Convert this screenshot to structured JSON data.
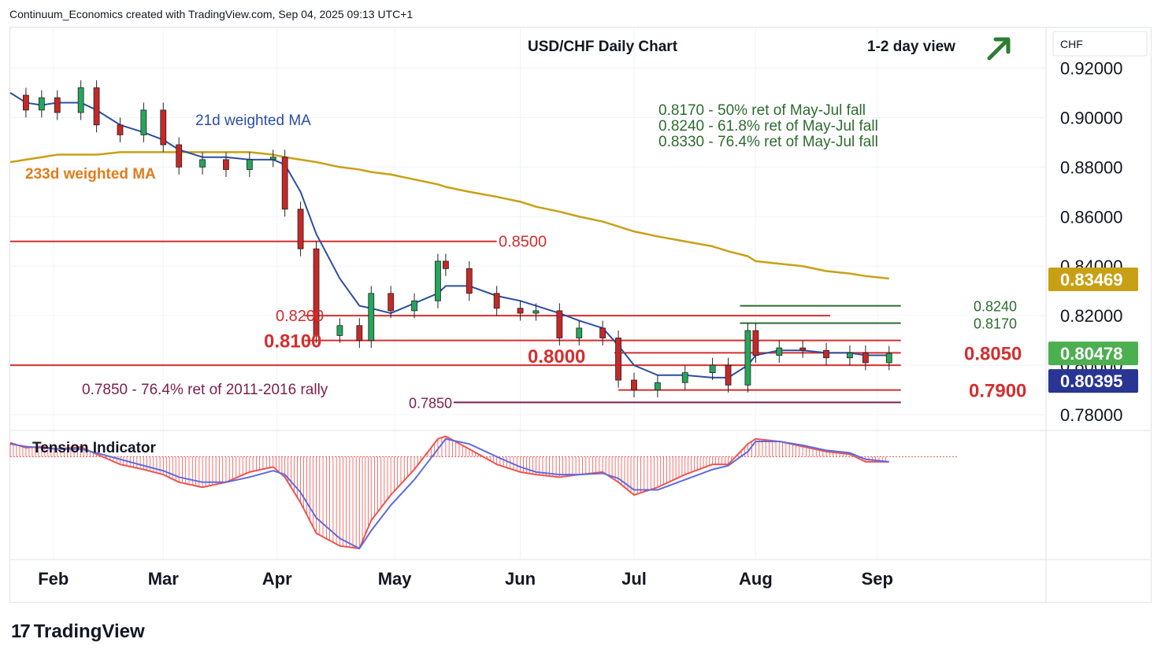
{
  "header": {
    "credit": "Continuum_Economics created with TradingView.com, Sep 04, 2025 09:13 UTC+1"
  },
  "chart_data": {
    "type": "candlestick",
    "title": "USD/CHF Daily Chart",
    "subtitle": "1-2 day view",
    "outlook_icon": "arrow-up-right-icon",
    "currency": "CHF",
    "y_ticks": [
      "0.92000",
      "0.90000",
      "0.88000",
      "0.86000",
      "0.84000",
      "0.82000",
      "0.80000",
      "0.78000"
    ],
    "y_tick_values": [
      0.92,
      0.9,
      0.88,
      0.86,
      0.84,
      0.82,
      0.8,
      0.78
    ],
    "ylim": [
      0.774,
      0.936
    ],
    "x_ticks": [
      "Feb",
      "Mar",
      "Apr",
      "May",
      "Jun",
      "Jul",
      "Aug",
      "Sep"
    ],
    "x_tick_dates": [
      "2025-02-03",
      "2025-03-03",
      "2025-04-01",
      "2025-05-01",
      "2025-06-02",
      "2025-07-01",
      "2025-08-01",
      "2025-09-01"
    ],
    "xlim": [
      "2025-01-23",
      "2025-10-14"
    ],
    "price_labels": [
      {
        "text": "0.83469",
        "value": 0.83469,
        "color": "#c8a015"
      },
      {
        "text": "0.80478",
        "value": 0.80478,
        "color": "#4caf50"
      },
      {
        "text": "0.80395",
        "value": 0.80395,
        "color": "#283593"
      }
    ],
    "moving_averages": [
      {
        "name": "21d weighted MA",
        "color": "#2b4ea1"
      },
      {
        "name": "233d weighted MA",
        "color": "#c8a015"
      }
    ],
    "ma_label_colors": {
      "ma21": "#2b4ea1",
      "ma233": "#e07d1c"
    },
    "horizontal_levels": [
      {
        "text": "0.8500",
        "value": 0.85,
        "color": "#d32f2f",
        "from": "2025-01-23",
        "to": "2025-05-27"
      },
      {
        "text": "0.8240",
        "value": 0.824,
        "color": "#2e6b30",
        "from": "2025-07-28",
        "to": "2025-09-07"
      },
      {
        "text": "0.8200",
        "value": 0.82,
        "color": "#d32f2f",
        "from": "2025-04-08",
        "to": "2025-08-20"
      },
      {
        "text": "0.8170",
        "value": 0.817,
        "color": "#2e6b30",
        "from": "2025-07-28",
        "to": "2025-09-07"
      },
      {
        "text": "0.8100",
        "value": 0.81,
        "color": "#d32f2f",
        "from": "2025-04-08",
        "to": "2025-09-07"
      },
      {
        "text": "0.8050",
        "value": 0.805,
        "color": "#d32f2f",
        "from": "2025-06-26",
        "to": "2025-09-07"
      },
      {
        "text": "0.8000",
        "value": 0.8,
        "color": "#d32f2f",
        "from": "2025-01-23",
        "to": "2025-09-07"
      },
      {
        "text": "0.7900",
        "value": 0.79,
        "color": "#d32f2f",
        "from": "2025-06-27",
        "to": "2025-09-07"
      },
      {
        "text": "0.7850",
        "value": 0.785,
        "color": "#7b1f4f",
        "from": "2025-05-16",
        "to": "2025-09-07"
      }
    ],
    "annotations": [
      "0.8170 - 50% ret of May-Jul fall",
      "0.8240 - 61.8% ret of May-Jul fall",
      "0.8330 - 76.4% ret of May-Jul fall",
      "0.7850 - 76.4% ret of 2011-2016 rally"
    ],
    "annotation_color": "#2e6b30",
    "annotation_color_alt": "#7b1f4f",
    "series": [
      {
        "name": "Close (approx.)",
        "x": [
          "2025-01-23",
          "2025-01-27",
          "2025-01-31",
          "2025-02-04",
          "2025-02-10",
          "2025-02-14",
          "2025-02-20",
          "2025-02-26",
          "2025-03-03",
          "2025-03-07",
          "2025-03-13",
          "2025-03-19",
          "2025-03-25",
          "2025-03-31",
          "2025-04-03",
          "2025-04-07",
          "2025-04-11",
          "2025-04-17",
          "2025-04-22",
          "2025-04-25",
          "2025-04-30",
          "2025-05-06",
          "2025-05-12",
          "2025-05-14",
          "2025-05-20",
          "2025-05-27",
          "2025-06-02",
          "2025-06-06",
          "2025-06-12",
          "2025-06-17",
          "2025-06-23",
          "2025-06-27",
          "2025-07-01",
          "2025-07-07",
          "2025-07-14",
          "2025-07-21",
          "2025-07-25",
          "2025-07-30",
          "2025-08-01",
          "2025-08-07",
          "2025-08-13",
          "2025-08-19",
          "2025-08-25",
          "2025-08-29",
          "2025-09-04"
        ],
        "values": [
          0.909,
          0.903,
          0.908,
          0.902,
          0.912,
          0.897,
          0.893,
          0.903,
          0.889,
          0.88,
          0.883,
          0.879,
          0.883,
          0.884,
          0.863,
          0.847,
          0.812,
          0.816,
          0.81,
          0.829,
          0.822,
          0.826,
          0.842,
          0.839,
          0.829,
          0.823,
          0.821,
          0.822,
          0.811,
          0.815,
          0.811,
          0.794,
          0.79,
          0.793,
          0.797,
          0.8,
          0.792,
          0.814,
          0.804,
          0.807,
          0.806,
          0.803,
          0.805,
          0.801,
          0.8048
        ]
      }
    ],
    "ma21_values": [
      0.91,
      0.906,
      0.905,
      0.906,
      0.906,
      0.903,
      0.897,
      0.894,
      0.891,
      0.887,
      0.884,
      0.884,
      0.883,
      0.883,
      0.881,
      0.87,
      0.853,
      0.835,
      0.824,
      0.823,
      0.821,
      0.825,
      0.829,
      0.832,
      0.832,
      0.828,
      0.826,
      0.824,
      0.821,
      0.818,
      0.815,
      0.808,
      0.8,
      0.796,
      0.796,
      0.795,
      0.795,
      0.8,
      0.804,
      0.806,
      0.806,
      0.805,
      0.805,
      0.804,
      0.804
    ],
    "ma233_values": [
      0.882,
      0.883,
      0.884,
      0.885,
      0.885,
      0.885,
      0.886,
      0.886,
      0.886,
      0.886,
      0.886,
      0.886,
      0.886,
      0.885,
      0.884,
      0.883,
      0.882,
      0.88,
      0.879,
      0.878,
      0.877,
      0.875,
      0.873,
      0.872,
      0.87,
      0.868,
      0.866,
      0.864,
      0.862,
      0.86,
      0.858,
      0.856,
      0.854,
      0.852,
      0.85,
      0.848,
      0.846,
      0.844,
      0.842,
      0.841,
      0.84,
      0.838,
      0.837,
      0.836,
      0.835
    ],
    "tension_indicator": {
      "label": "Tension Indicator",
      "values": [
        0.55,
        0.35,
        0.4,
        0.3,
        0.38,
        0.1,
        -0.3,
        -0.5,
        -0.7,
        -1.0,
        -1.2,
        -1.0,
        -0.6,
        -0.4,
        -0.8,
        -1.8,
        -3.0,
        -3.5,
        -3.6,
        -2.5,
        -1.5,
        -0.5,
        0.7,
        0.8,
        0.3,
        -0.3,
        -0.6,
        -0.7,
        -0.8,
        -0.7,
        -0.6,
        -1.0,
        -1.5,
        -1.2,
        -0.7,
        -0.3,
        -0.3,
        0.5,
        0.7,
        0.6,
        0.4,
        0.2,
        0.1,
        -0.2,
        -0.2
      ],
      "signal": [
        0.5,
        0.4,
        0.35,
        0.3,
        0.3,
        0.15,
        -0.1,
        -0.35,
        -0.55,
        -0.8,
        -1.0,
        -1.0,
        -0.8,
        -0.55,
        -0.7,
        -1.4,
        -2.4,
        -3.2,
        -3.6,
        -2.9,
        -1.9,
        -0.9,
        0.3,
        0.7,
        0.5,
        0.0,
        -0.4,
        -0.6,
        -0.7,
        -0.7,
        -0.65,
        -0.85,
        -1.3,
        -1.3,
        -0.9,
        -0.5,
        -0.35,
        0.2,
        0.6,
        0.6,
        0.45,
        0.25,
        0.15,
        -0.1,
        -0.2
      ],
      "range": [
        -4.0,
        1.0
      ]
    }
  }
}
